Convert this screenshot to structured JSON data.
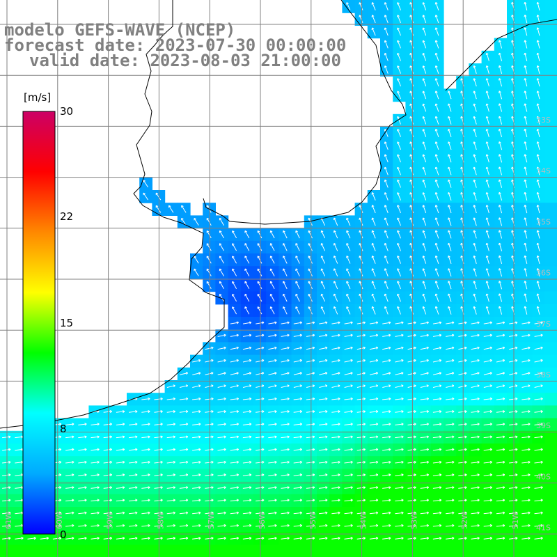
{
  "title": {
    "line1": "modelo GEFS-WAVE (NCEP)",
    "line2": "forecast date: 2023-07-30 00:00:00",
    "line3": "valid date: 2023-08-03 21:00:00"
  },
  "colorbar": {
    "unit": "[m/s]",
    "ticks": [
      {
        "label": "30",
        "value": 30
      },
      {
        "label": "22",
        "value": 22
      },
      {
        "label": "15",
        "value": 15
      },
      {
        "label": "8",
        "value": 8
      },
      {
        "label": "0",
        "value": 0
      }
    ],
    "min": 0,
    "max": 30,
    "stops": [
      "#0000ff",
      "#00aaff",
      "#00ffff",
      "#00ff00",
      "#ffff00",
      "#ff8800",
      "#ff0000",
      "#cc0066"
    ]
  },
  "grid": {
    "lon_labels": [
      "61W",
      "60W",
      "59W",
      "58W",
      "57W",
      "56W",
      "55W",
      "54W",
      "53W",
      "52W",
      "51W"
    ],
    "lat_labels": [
      "33S",
      "34S",
      "35S",
      "36S",
      "37S",
      "38S",
      "39S",
      "40S",
      "41S"
    ],
    "grid_color": "#808080",
    "label_color": "#bbbbbb"
  },
  "map": {
    "land_color": "#ffffff",
    "coast_color": "#000000",
    "arrow_color": "#ffffff"
  }
}
